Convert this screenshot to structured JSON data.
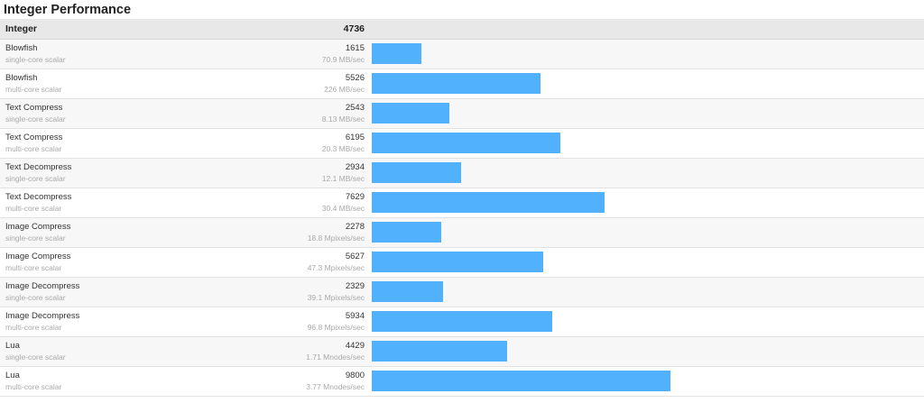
{
  "section_title": "Integer Performance",
  "header": {
    "label": "Integer",
    "score": "4736"
  },
  "colors": {
    "bar": "#52b1fd",
    "header_bg": "#e8e8e8",
    "row_alt_bg": "#f7f7f7"
  },
  "chart_data": {
    "type": "bar",
    "orientation": "horizontal",
    "title": "Integer Performance",
    "overall": {
      "label": "Integer",
      "score": 4736
    },
    "max_bar_value": 9800,
    "rows": [
      {
        "name": "Blowfish",
        "sub": "single-core scalar",
        "score": 1615,
        "score_label": "1615",
        "rate": "70.9 MB/sec"
      },
      {
        "name": "Blowfish",
        "sub": "multi-core scalar",
        "score": 5526,
        "score_label": "5526",
        "rate": "226 MB/sec"
      },
      {
        "name": "Text Compress",
        "sub": "single-core scalar",
        "score": 2543,
        "score_label": "2543",
        "rate": "8.13 MB/sec"
      },
      {
        "name": "Text Compress",
        "sub": "multi-core scalar",
        "score": 6195,
        "score_label": "6195",
        "rate": "20.3 MB/sec"
      },
      {
        "name": "Text Decompress",
        "sub": "single-core scalar",
        "score": 2934,
        "score_label": "2934",
        "rate": "12.1 MB/sec"
      },
      {
        "name": "Text Decompress",
        "sub": "multi-core scalar",
        "score": 7629,
        "score_label": "7629",
        "rate": "30.4 MB/sec"
      },
      {
        "name": "Image Compress",
        "sub": "single-core scalar",
        "score": 2278,
        "score_label": "2278",
        "rate": "18.8 Mpixels/sec"
      },
      {
        "name": "Image Compress",
        "sub": "multi-core scalar",
        "score": 5627,
        "score_label": "5627",
        "rate": "47.3 Mpixels/sec"
      },
      {
        "name": "Image Decompress",
        "sub": "single-core scalar",
        "score": 2329,
        "score_label": "2329",
        "rate": "39.1 Mpixels/sec"
      },
      {
        "name": "Image Decompress",
        "sub": "multi-core scalar",
        "score": 5934,
        "score_label": "5934",
        "rate": "96.8 Mpixels/sec"
      },
      {
        "name": "Lua",
        "sub": "single-core scalar",
        "score": 4429,
        "score_label": "4429",
        "rate": "1.71 Mnodes/sec"
      },
      {
        "name": "Lua",
        "sub": "multi-core scalar",
        "score": 9800,
        "score_label": "9800",
        "rate": "3.77 Mnodes/sec"
      }
    ]
  }
}
